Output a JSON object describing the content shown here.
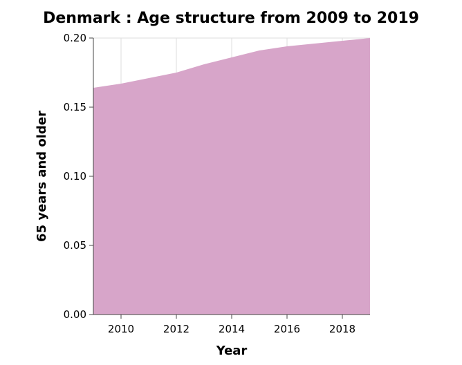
{
  "chart_data": {
    "type": "area",
    "title": "Denmark : Age structure from 2009 to 2019",
    "xlabel": "Year",
    "ylabel": "65 years and older",
    "x": [
      2009,
      2010,
      2011,
      2012,
      2013,
      2014,
      2015,
      2016,
      2017,
      2018,
      2019
    ],
    "series": [
      {
        "values": [
          0.164,
          0.167,
          0.171,
          0.175,
          0.181,
          0.186,
          0.191,
          0.194,
          0.196,
          0.198,
          0.2
        ]
      }
    ],
    "xlim": [
      2009,
      2019
    ],
    "ylim": [
      0,
      0.2
    ],
    "xticks": [
      2010,
      2012,
      2014,
      2016,
      2018
    ],
    "xtick_labels": [
      "2010",
      "2012",
      "2014",
      "2016",
      "2018"
    ],
    "yticks": [
      0,
      0.05,
      0.1,
      0.15,
      0.2
    ],
    "ytick_labels": [
      "0.00",
      "0.05",
      "0.10",
      "0.15",
      "0.20"
    ],
    "grid": true,
    "colors": {
      "fill": "#d7a5c9",
      "grid": "#dddddd",
      "axis": "#444444"
    }
  }
}
